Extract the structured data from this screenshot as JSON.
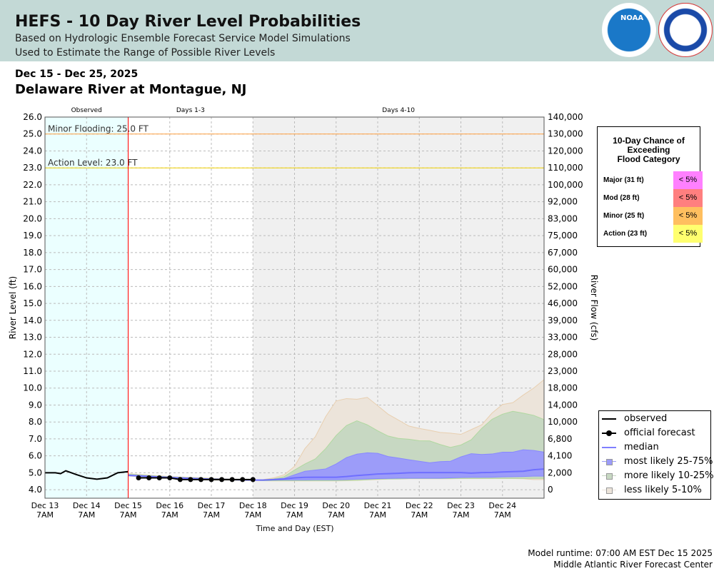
{
  "header": {
    "title": "HEFS - 10 Day River Level Probabilities",
    "subtitle1": "Based on Hydrologic Ensemble Forecast Service Model Simulations",
    "subtitle2": "Used to Estimate the Range of Possible River Levels",
    "logos": [
      "NOAA",
      "NATIONAL WEATHER SERVICE"
    ]
  },
  "date_range": "Dec 15 - Dec 25, 2025",
  "site": "Delaware River at Montague, NJ",
  "flood_chance": {
    "title": [
      "10-Day Chance of",
      "Exceeding",
      "Flood Category"
    ],
    "rows": [
      {
        "label": "Major (31 ft)",
        "value": "< 5%",
        "color": "#ff80ff"
      },
      {
        "label": "Mod (28 ft)",
        "value": "< 5%",
        "color": "#ff7f7f"
      },
      {
        "label": "Minor (25 ft)",
        "value": "< 5%",
        "color": "#ffbf5f"
      },
      {
        "label": "Action (23 ft)",
        "value": "< 5%",
        "color": "#ffff6f"
      }
    ]
  },
  "legend": [
    {
      "label": "observed",
      "kind": "line",
      "color": "#000000"
    },
    {
      "label": "official forecast",
      "kind": "dots",
      "color": "#000000"
    },
    {
      "label": "median",
      "kind": "line",
      "color": "#7f7fff"
    },
    {
      "label": "most likely 25-75%",
      "kind": "box",
      "color": "#9c9cf9"
    },
    {
      "label": "more likely 10-25%",
      "kind": "box",
      "color": "#c7d8c2"
    },
    {
      "label": "less likely 5-10%",
      "kind": "box",
      "color": "#ece4da"
    }
  ],
  "footer": {
    "runtime": "Model runtime: 07:00 AM EST Dec 15 2025",
    "center": "Middle Atlantic River Forecast Center"
  },
  "chart_data": {
    "type": "area",
    "xlabel": "Time and Day (EST)",
    "ylabel": "River Level (ft)",
    "y2label": "River Flow (cfs)",
    "xlim": [
      "2025-12-13T07:00",
      "2025-12-25T07:00"
    ],
    "ylim": [
      3.5,
      26
    ],
    "x_ticks": [
      [
        "Dec 13",
        "7AM"
      ],
      [
        "Dec 14",
        "7AM"
      ],
      [
        "Dec 15",
        "7AM"
      ],
      [
        "Dec 16",
        "7AM"
      ],
      [
        "Dec 17",
        "7AM"
      ],
      [
        "Dec 18",
        "7AM"
      ],
      [
        "Dec 19",
        "7AM"
      ],
      [
        "Dec 20",
        "7AM"
      ],
      [
        "Dec 21",
        "7AM"
      ],
      [
        "Dec 22",
        "7AM"
      ],
      [
        "Dec 23",
        "7AM"
      ],
      [
        "Dec 24",
        "7AM"
      ]
    ],
    "y_ticks": [
      "26.0",
      "25.0",
      "24.0",
      "23.0",
      "22.0",
      "21.0",
      "20.0",
      "19.0",
      "18.0",
      "17.0",
      "16.0",
      "15.0",
      "14.0",
      "13.0",
      "12.0",
      "11.0",
      "10.0",
      "9.0",
      "8.0",
      "7.0",
      "6.0",
      "5.0",
      "4.0"
    ],
    "y2_ticks": [
      "140,000",
      "130,000",
      "120,000",
      "110,000",
      "100,000",
      "92,000",
      "83,000",
      "75,000",
      "67,000",
      "60,000",
      "52,000",
      "46,000",
      "39,000",
      "33,000",
      "28,000",
      "23,000",
      "18,000",
      "14,000",
      "10,000",
      "6,800",
      "4,100",
      "2,000",
      "0"
    ],
    "grid": true,
    "regions": [
      {
        "label": "Observed",
        "from": "2025-12-13T07:00",
        "to": "2025-12-15T07:00",
        "color": "#ebffff"
      },
      {
        "label": "Days 1-3",
        "from": "2025-12-15T07:00",
        "to": "2025-12-18T07:00",
        "color": "#ffffff"
      },
      {
        "label": "Days 4-10",
        "from": "2025-12-18T07:00",
        "to": "2025-12-25T07:00",
        "color": "#f0f0f0"
      }
    ],
    "thresholds": [
      {
        "label": "Minor Flooding: 25.0 FT",
        "value": 25.0,
        "color": "#ffa040"
      },
      {
        "label": "Action Level: 23.0 FT",
        "value": 23.0,
        "color": "#f0d000"
      }
    ],
    "observed": {
      "x": [
        "2025-12-13T07:00",
        "2025-12-13T13:00",
        "2025-12-13T16:00",
        "2025-12-13T19:00",
        "2025-12-14T01:00",
        "2025-12-14T07:00",
        "2025-12-14T13:00",
        "2025-12-14T19:00",
        "2025-12-15T01:00",
        "2025-12-15T07:00"
      ],
      "y": [
        5.0,
        5.0,
        4.95,
        5.12,
        4.9,
        4.7,
        4.62,
        4.7,
        5.0,
        5.07
      ]
    },
    "official_forecast": {
      "x": [
        "2025-12-15T13:00",
        "2025-12-15T19:00",
        "2025-12-16T01:00",
        "2025-12-16T07:00",
        "2025-12-16T13:00",
        "2025-12-16T19:00",
        "2025-12-17T01:00",
        "2025-12-17T07:00",
        "2025-12-17T13:00",
        "2025-12-17T19:00",
        "2025-12-18T01:00",
        "2025-12-18T07:00"
      ],
      "y": [
        4.7,
        4.7,
        4.7,
        4.7,
        4.6,
        4.6,
        4.6,
        4.6,
        4.6,
        4.6,
        4.6,
        4.6
      ]
    },
    "ensemble": {
      "x": [
        "2025-12-15T07:00",
        "2025-12-16T07:00",
        "2025-12-17T07:00",
        "2025-12-18T07:00",
        "2025-12-18T13:00",
        "2025-12-18T19:00",
        "2025-12-19T01:00",
        "2025-12-19T07:00",
        "2025-12-19T13:00",
        "2025-12-19T19:00",
        "2025-12-20T01:00",
        "2025-12-20T07:00",
        "2025-12-20T13:00",
        "2025-12-20T19:00",
        "2025-12-21T01:00",
        "2025-12-21T07:00",
        "2025-12-21T13:00",
        "2025-12-21T19:00",
        "2025-12-22T01:00",
        "2025-12-22T07:00",
        "2025-12-22T13:00",
        "2025-12-22T19:00",
        "2025-12-23T01:00",
        "2025-12-23T07:00",
        "2025-12-23T13:00",
        "2025-12-23T19:00",
        "2025-12-24T01:00",
        "2025-12-24T07:00",
        "2025-12-24T13:00",
        "2025-12-24T19:00",
        "2025-12-25T01:00",
        "2025-12-25T07:00"
      ],
      "p95": [
        4.95,
        4.78,
        4.68,
        4.57,
        4.6,
        4.7,
        4.88,
        5.38,
        6.43,
        7.13,
        8.32,
        9.24,
        9.38,
        9.34,
        9.45,
        8.96,
        8.46,
        8.11,
        7.76,
        7.62,
        7.51,
        7.38,
        7.34,
        7.27,
        7.55,
        7.83,
        8.53,
        9.03,
        9.14,
        9.59,
        10.0,
        10.5
      ],
      "p90": [
        4.92,
        4.76,
        4.66,
        4.57,
        4.59,
        4.64,
        4.77,
        5.16,
        5.52,
        5.82,
        6.43,
        7.2,
        7.79,
        8.07,
        7.83,
        7.48,
        7.17,
        7.03,
        6.98,
        6.89,
        6.88,
        6.67,
        6.5,
        6.64,
        6.95,
        7.62,
        8.16,
        8.46,
        8.63,
        8.52,
        8.39,
        8.14
      ],
      "p75": [
        4.88,
        4.74,
        4.64,
        4.57,
        4.57,
        4.62,
        4.67,
        4.88,
        5.09,
        5.16,
        5.23,
        5.52,
        5.9,
        6.1,
        6.18,
        6.15,
        5.96,
        5.87,
        5.77,
        5.68,
        5.59,
        5.66,
        5.68,
        5.94,
        6.13,
        6.08,
        6.11,
        6.22,
        6.22,
        6.36,
        6.32,
        6.22
      ],
      "median": [
        4.85,
        4.72,
        4.62,
        4.57,
        4.57,
        4.6,
        4.64,
        4.7,
        4.73,
        4.74,
        4.74,
        4.74,
        4.78,
        4.84,
        4.88,
        4.93,
        4.95,
        4.97,
        5.0,
        5.01,
        5.01,
        5.01,
        5.01,
        5.01,
        4.98,
        5.01,
        5.02,
        5.05,
        5.07,
        5.09,
        5.18,
        5.22
      ],
      "p25": [
        4.83,
        4.7,
        4.6,
        4.56,
        4.56,
        4.57,
        4.58,
        4.58,
        4.58,
        4.59,
        4.59,
        4.59,
        4.6,
        4.62,
        4.64,
        4.66,
        4.67,
        4.68,
        4.68,
        4.68,
        4.68,
        4.68,
        4.7,
        4.72,
        4.73,
        4.73,
        4.74,
        4.76,
        4.77,
        4.78,
        4.8,
        4.8
      ],
      "p10": [
        4.82,
        4.68,
        4.58,
        4.56,
        4.53,
        4.53,
        4.53,
        4.53,
        4.53,
        4.53,
        4.53,
        4.53,
        4.55,
        4.56,
        4.59,
        4.62,
        4.63,
        4.64,
        4.66,
        4.66,
        4.66,
        4.66,
        4.66,
        4.67,
        4.67,
        4.67,
        4.67,
        4.67,
        4.67,
        4.67,
        4.67,
        4.67
      ],
      "p5": [
        4.81,
        4.67,
        4.57,
        4.56,
        4.53,
        4.52,
        4.52,
        4.52,
        4.52,
        4.52,
        4.52,
        4.52,
        4.53,
        4.55,
        4.58,
        4.6,
        4.63,
        4.63,
        4.65,
        4.65,
        4.65,
        4.65,
        4.65,
        4.66,
        4.66,
        4.66,
        4.66,
        4.66,
        4.66,
        4.65,
        4.6,
        4.6
      ]
    }
  }
}
